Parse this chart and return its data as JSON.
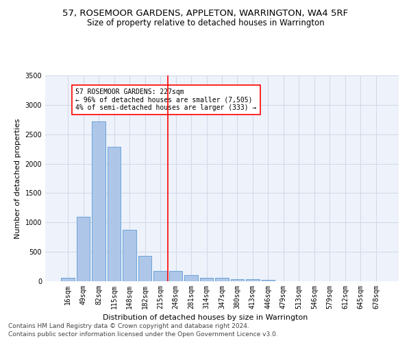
{
  "title": "57, ROSEMOOR GARDENS, APPLETON, WARRINGTON, WA4 5RF",
  "subtitle": "Size of property relative to detached houses in Warrington",
  "xlabel": "Distribution of detached houses by size in Warrington",
  "ylabel": "Number of detached properties",
  "bar_labels": [
    "16sqm",
    "49sqm",
    "82sqm",
    "115sqm",
    "148sqm",
    "182sqm",
    "215sqm",
    "248sqm",
    "281sqm",
    "314sqm",
    "347sqm",
    "380sqm",
    "413sqm",
    "446sqm",
    "479sqm",
    "513sqm",
    "546sqm",
    "579sqm",
    "612sqm",
    "645sqm",
    "678sqm"
  ],
  "bar_values": [
    60,
    1100,
    2720,
    2290,
    880,
    430,
    170,
    170,
    100,
    60,
    55,
    40,
    30,
    25,
    0,
    0,
    0,
    0,
    0,
    0,
    0
  ],
  "bar_color": "#aec6e8",
  "bar_edge_color": "#5b9bd5",
  "vline_x": 6.5,
  "vline_color": "red",
  "annotation_text": "57 ROSEMOOR GARDENS: 227sqm\n← 96% of detached houses are smaller (7,505)\n4% of semi-detached houses are larger (333) →",
  "annotation_box_color": "white",
  "annotation_box_edge_color": "red",
  "ylim": [
    0,
    3500
  ],
  "yticks": [
    0,
    500,
    1000,
    1500,
    2000,
    2500,
    3000,
    3500
  ],
  "grid_color": "#d0d8e8",
  "background_color": "#eef2fa",
  "footer_line1": "Contains HM Land Registry data © Crown copyright and database right 2024.",
  "footer_line2": "Contains public sector information licensed under the Open Government Licence v3.0.",
  "title_fontsize": 9.5,
  "subtitle_fontsize": 8.5,
  "ylabel_fontsize": 8,
  "xlabel_fontsize": 8,
  "tick_fontsize": 7,
  "annotation_fontsize": 7,
  "footer_fontsize": 6.5
}
